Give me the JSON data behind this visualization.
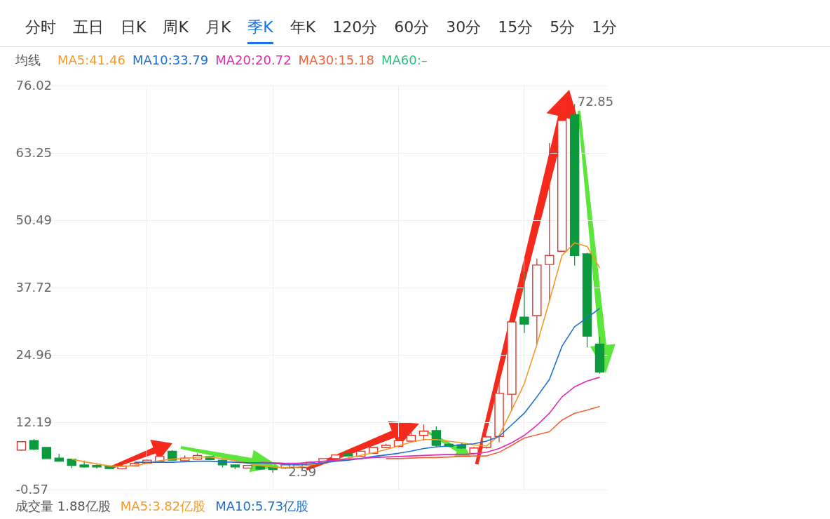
{
  "chart_data": {
    "type": "candlestick",
    "categories": [
      null,
      null,
      null,
      null,
      null,
      null,
      null,
      null,
      null,
      null,
      null,
      null,
      null,
      null,
      null,
      null,
      null,
      null,
      null,
      null,
      null,
      null,
      null,
      null,
      null,
      null,
      null,
      null,
      null,
      null,
      null,
      null,
      null,
      null,
      null,
      null,
      null,
      null,
      null,
      null,
      null,
      null,
      null,
      null,
      null,
      null,
      null
    ],
    "ohlc": [
      [
        6.9,
        8.6,
        6.8,
        8.5
      ],
      [
        8.7,
        9.0,
        6.9,
        7.1
      ],
      [
        7.4,
        7.5,
        5.3,
        5.3
      ],
      [
        5.4,
        6.2,
        4.7,
        4.8
      ],
      [
        5.2,
        5.3,
        3.5,
        4.0
      ],
      [
        4.1,
        4.9,
        3.6,
        3.7
      ],
      [
        4.0,
        4.3,
        3.4,
        3.7
      ],
      [
        3.9,
        4.0,
        3.3,
        3.4
      ],
      [
        3.4,
        4.1,
        3.3,
        3.9
      ],
      [
        3.9,
        4.6,
        3.8,
        4.4
      ],
      [
        4.4,
        5.1,
        4.3,
        5.0
      ],
      [
        4.8,
        5.8,
        4.7,
        5.7
      ],
      [
        6.7,
        6.9,
        4.9,
        5.0
      ],
      [
        4.9,
        5.9,
        4.8,
        5.4
      ],
      [
        5.2,
        6.3,
        5.1,
        5.9
      ],
      [
        5.7,
        5.8,
        5.0,
        5.1
      ],
      [
        5.0,
        5.1,
        3.6,
        4.1
      ],
      [
        4.1,
        4.2,
        3.3,
        3.7
      ],
      [
        3.5,
        4.1,
        3.4,
        4.0
      ],
      [
        3.8,
        3.9,
        3.2,
        3.3
      ],
      [
        3.7,
        3.8,
        2.59,
        3.2
      ],
      [
        3.5,
        4.2,
        3.3,
        4.1
      ],
      [
        3.6,
        4.3,
        3.5,
        4.2
      ],
      [
        4.0,
        4.7,
        3.9,
        4.6
      ],
      [
        4.5,
        5.4,
        4.4,
        5.3
      ],
      [
        5.3,
        6.1,
        5.2,
        6.0
      ],
      [
        6.2,
        6.4,
        5.7,
        5.8
      ],
      [
        5.7,
        6.8,
        5.6,
        6.7
      ],
      [
        6.3,
        7.5,
        6.2,
        7.4
      ],
      [
        7.4,
        8.1,
        7.3,
        7.8
      ],
      [
        7.6,
        9.4,
        7.5,
        8.7
      ],
      [
        8.6,
        10.5,
        8.5,
        9.7
      ],
      [
        9.7,
        11.8,
        8.7,
        10.5
      ],
      [
        10.6,
        11.4,
        7.4,
        7.8
      ],
      [
        8.0,
        8.3,
        7.5,
        7.6
      ],
      [
        7.9,
        8.2,
        7.1,
        7.3
      ],
      [
        6.3,
        7.5,
        6.1,
        7.3
      ],
      [
        7.4,
        9.6,
        7.2,
        9.4
      ],
      [
        9.5,
        20.5,
        8.4,
        17.7
      ],
      [
        17.5,
        31.5,
        14.3,
        31.2
      ],
      [
        32.1,
        40.8,
        29.1,
        30.8
      ],
      [
        32.4,
        43.2,
        26.9,
        42.0
      ],
      [
        42.1,
        65.1,
        35.2,
        43.8
      ],
      [
        44.6,
        72.85,
        44.6,
        69.4
      ],
      [
        70.5,
        72.5,
        41.9,
        43.8
      ],
      [
        44.1,
        44.3,
        26.4,
        28.5
      ],
      [
        27.0,
        28.4,
        21.4,
        21.7
      ]
    ],
    "series": [
      {
        "name": "MA5:41.46",
        "color": "#f39a2b",
        "type": "line",
        "values": [
          null,
          null,
          null,
          null,
          5.2,
          4.7,
          4.3,
          3.9,
          3.8,
          4.0,
          4.4,
          4.9,
          5.2,
          5.3,
          5.6,
          5.6,
          5.3,
          4.9,
          4.4,
          4.0,
          3.7,
          3.6,
          3.7,
          4.1,
          4.5,
          4.9,
          5.4,
          5.9,
          6.4,
          7.0,
          7.7,
          8.4,
          8.9,
          8.9,
          8.6,
          8.3,
          7.9,
          7.7,
          9.7,
          14.5,
          19.5,
          26.9,
          35.2,
          43.8,
          46.2,
          45.5,
          41.46
        ]
      },
      {
        "name": "MA10:33.79",
        "color": "#1e6fd0",
        "type": "line",
        "values": [
          null,
          null,
          null,
          null,
          null,
          null,
          null,
          null,
          null,
          4.6,
          4.6,
          4.6,
          4.6,
          4.7,
          4.8,
          4.8,
          4.7,
          4.6,
          4.5,
          4.5,
          4.4,
          4.2,
          4.1,
          4.3,
          4.5,
          4.8,
          5.0,
          5.3,
          5.7,
          6.0,
          6.3,
          6.7,
          7.2,
          7.5,
          7.7,
          7.9,
          8.1,
          8.6,
          9.5,
          11.7,
          13.9,
          17.0,
          20.3,
          26.6,
          30.3,
          32.0,
          33.79
        ]
      },
      {
        "name": "MA20:20.72",
        "color": "#e02bb5",
        "type": "line",
        "values": [
          null,
          null,
          null,
          null,
          null,
          null,
          null,
          null,
          null,
          null,
          null,
          null,
          null,
          null,
          null,
          null,
          null,
          null,
          null,
          4.6,
          4.5,
          4.4,
          4.4,
          4.6,
          4.8,
          5.0,
          5.2,
          5.3,
          5.5,
          5.6,
          5.7,
          5.8,
          5.9,
          6.0,
          6.1,
          6.1,
          6.2,
          6.5,
          7.2,
          8.3,
          9.7,
          11.6,
          13.9,
          17.0,
          18.9,
          20.0,
          20.72
        ]
      },
      {
        "name": "MA30:15.18",
        "color": "#f2653a",
        "type": "line",
        "values": [
          null,
          null,
          null,
          null,
          null,
          null,
          null,
          null,
          null,
          null,
          null,
          null,
          null,
          null,
          null,
          null,
          null,
          null,
          null,
          null,
          null,
          null,
          null,
          null,
          null,
          null,
          null,
          null,
          null,
          5.3,
          5.3,
          5.4,
          5.5,
          5.5,
          5.6,
          5.7,
          5.8,
          5.8,
          6.5,
          7.8,
          9.2,
          9.8,
          10.4,
          12.6,
          13.9,
          14.5,
          15.18
        ]
      },
      {
        "name": "MA60:–",
        "color": "#2ec27e",
        "type": "line",
        "values": [
          null,
          null,
          null,
          null,
          null,
          null,
          null,
          null,
          null,
          null,
          null,
          null,
          null,
          null,
          null,
          null,
          null,
          null,
          null,
          null,
          null,
          null,
          null,
          null,
          null,
          null,
          null,
          null,
          null,
          null,
          null,
          null,
          null,
          null,
          null,
          null,
          null,
          null,
          null,
          null,
          null,
          null,
          null,
          null,
          null,
          null,
          null
        ]
      }
    ],
    "legend_title": "均线",
    "legend": "top left",
    "ylim": [
      -0.57,
      76.02
    ],
    "yticks": [
      -0.57,
      12.19,
      24.96,
      37.72,
      50.49,
      63.25,
      76.02
    ],
    "grid": true,
    "tick_labels": "y",
    "annotations": [
      "分时",
      "五日",
      "日K",
      "周K",
      "月K",
      "季K",
      "年K",
      "120分",
      "60分",
      "30分",
      "15分",
      "5分",
      "1分",
      "成交量 1.88亿股",
      "MA5:3.82亿股",
      "MA10:5.73亿股",
      "72.85",
      "2.59"
    ]
  }
}
